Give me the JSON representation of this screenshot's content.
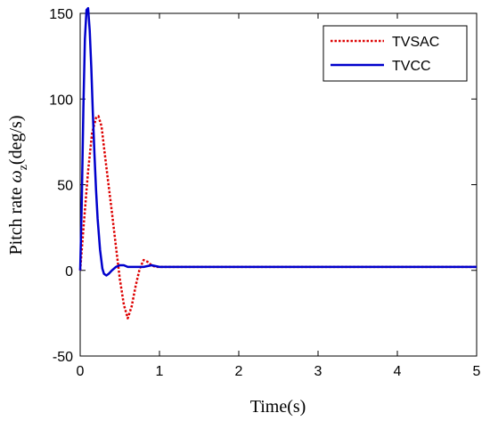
{
  "chart_data": {
    "type": "line",
    "xlabel": "Time(s)",
    "ylabel_main": "Pitch rate ",
    "ylabel_symbol": "ω",
    "ylabel_subscript": "z",
    "ylabel_unit": "(deg/s)",
    "xlim": [
      0,
      5
    ],
    "ylim": [
      -50,
      150
    ],
    "xticks": [
      0,
      1,
      2,
      3,
      4,
      5
    ],
    "yticks": [
      -50,
      0,
      50,
      100,
      150
    ],
    "grid": false,
    "legend_position": "top-right",
    "series": [
      {
        "name": "TVSAC",
        "color": "#dd0000",
        "style": "dotted",
        "x": [
          0,
          0.05,
          0.1,
          0.15,
          0.2,
          0.23,
          0.27,
          0.3,
          0.35,
          0.4,
          0.45,
          0.5,
          0.55,
          0.6,
          0.65,
          0.7,
          0.75,
          0.8,
          0.85,
          0.9,
          0.95,
          1.0,
          1.1,
          1.3,
          5.0
        ],
        "values": [
          0,
          30,
          58,
          80,
          89,
          90,
          84,
          72,
          53,
          34,
          14,
          -5,
          -20,
          -28,
          -21,
          -9,
          1,
          6,
          5,
          3,
          2,
          2,
          2,
          2,
          2
        ]
      },
      {
        "name": "TVCC",
        "color": "#0000cc",
        "style": "solid",
        "x": [
          0,
          0.02,
          0.04,
          0.06,
          0.08,
          0.1,
          0.12,
          0.14,
          0.16,
          0.18,
          0.2,
          0.22,
          0.25,
          0.28,
          0.3,
          0.33,
          0.36,
          0.4,
          0.45,
          0.5,
          0.55,
          0.6,
          0.7,
          0.8,
          0.9,
          1.0,
          1.2,
          5.0
        ],
        "values": [
          0,
          40,
          95,
          135,
          152,
          153,
          140,
          118,
          92,
          68,
          47,
          30,
          12,
          1,
          -2,
          -3,
          -2,
          0,
          2,
          3,
          3,
          2,
          2,
          2,
          3,
          2,
          2,
          2
        ]
      }
    ]
  }
}
